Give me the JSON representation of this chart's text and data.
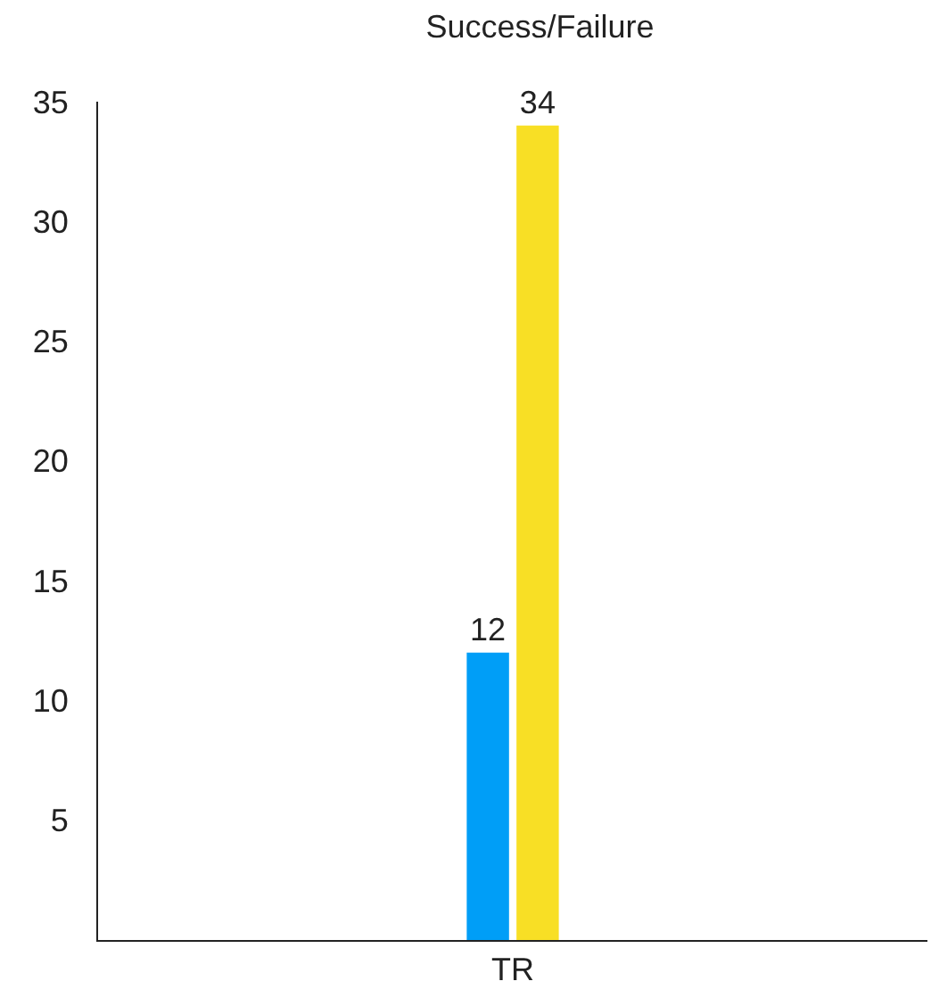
{
  "chart_data": {
    "type": "bar",
    "title": "Success/Failure",
    "categories": [
      "TR"
    ],
    "series": [
      {
        "color": "#009ef7",
        "values": [
          12
        ]
      },
      {
        "color": "#f8df25",
        "values": [
          34
        ]
      }
    ],
    "ylim": [
      0,
      35
    ],
    "yticks": [
      5,
      10,
      15,
      20,
      25,
      30,
      35
    ],
    "grid": false,
    "data_labels": true
  }
}
